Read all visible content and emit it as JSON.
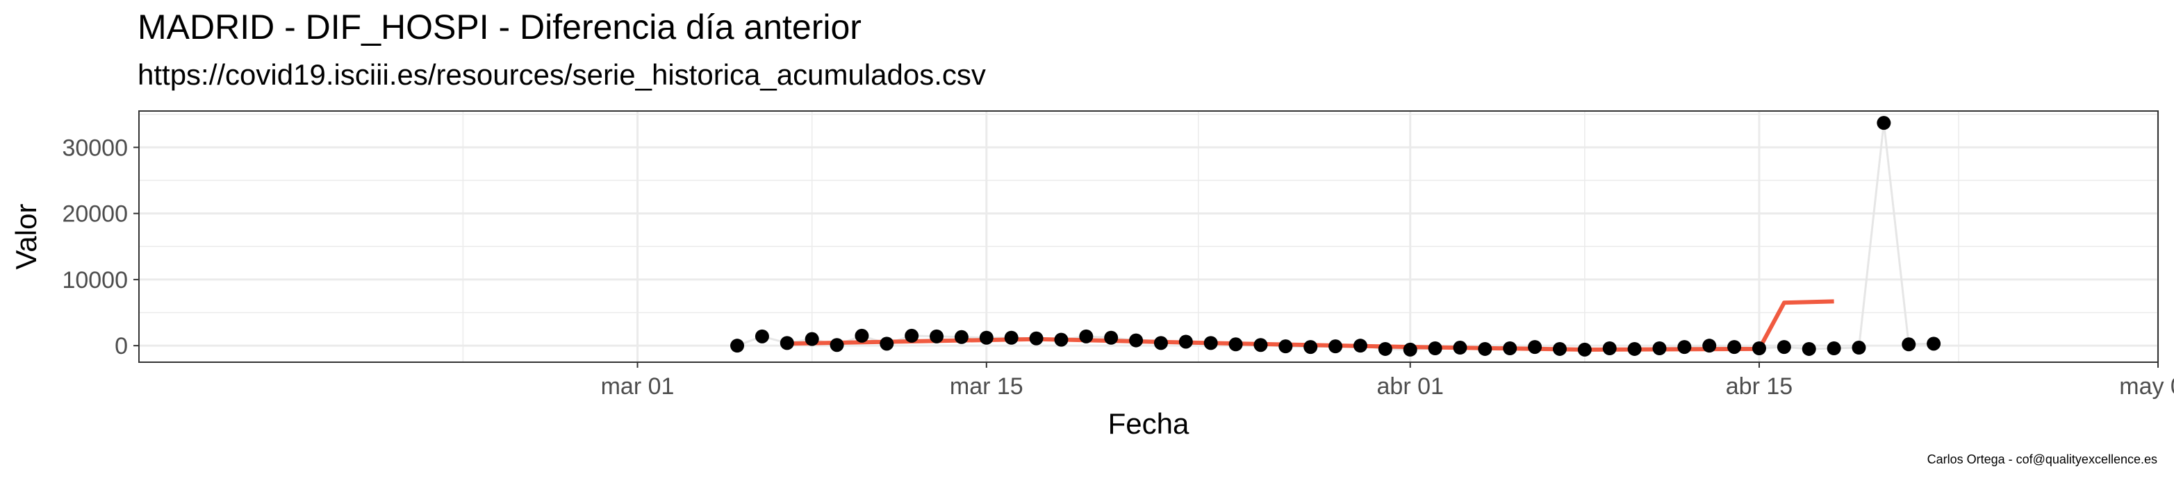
{
  "title": "MADRID - DIF_HOSPI - Diferencia día anterior",
  "subtitle": "https://covid19.isciii.es/resources/serie_historica_acumulados.csv",
  "caption": "Carlos Ortega - cof@qualityexcellence.es",
  "colors": {
    "points": "#000000",
    "smooth": "#f05a40",
    "connector": "#e6e6e6",
    "grid": "#ebebeb",
    "border": "#333333"
  },
  "chart_data": {
    "type": "scatter",
    "xlabel": "Fecha",
    "ylabel": "Valor",
    "x_ticks": [
      {
        "date": "2020-03-01",
        "label": "mar 01"
      },
      {
        "date": "2020-03-15",
        "label": "mar 15"
      },
      {
        "date": "2020-04-01",
        "label": "abr 01"
      },
      {
        "date": "2020-04-15",
        "label": "abr 15"
      },
      {
        "date": "2020-05-01",
        "label": "may 01"
      }
    ],
    "y_ticks": [
      0,
      10000,
      20000,
      30000
    ],
    "xlim": [
      "2020-02-10",
      "2020-05-01"
    ],
    "ylim": [
      -2500,
      35500
    ],
    "grid": true,
    "series": [
      {
        "points": [
          {
            "x": "2020-03-05",
            "y": 0
          },
          {
            "x": "2020-03-06",
            "y": 1400
          },
          {
            "x": "2020-03-07",
            "y": 400
          },
          {
            "x": "2020-03-08",
            "y": 1000
          },
          {
            "x": "2020-03-09",
            "y": 100
          },
          {
            "x": "2020-03-10",
            "y": 1500
          },
          {
            "x": "2020-03-11",
            "y": 300
          },
          {
            "x": "2020-03-12",
            "y": 1500
          },
          {
            "x": "2020-03-13",
            "y": 1400
          },
          {
            "x": "2020-03-14",
            "y": 1300
          },
          {
            "x": "2020-03-15",
            "y": 1200
          },
          {
            "x": "2020-03-16",
            "y": 1200
          },
          {
            "x": "2020-03-17",
            "y": 1100
          },
          {
            "x": "2020-03-18",
            "y": 900
          },
          {
            "x": "2020-03-19",
            "y": 1400
          },
          {
            "x": "2020-03-20",
            "y": 1200
          },
          {
            "x": "2020-03-21",
            "y": 800
          },
          {
            "x": "2020-03-22",
            "y": 400
          },
          {
            "x": "2020-03-23",
            "y": 600
          },
          {
            "x": "2020-03-24",
            "y": 400
          },
          {
            "x": "2020-03-25",
            "y": 200
          },
          {
            "x": "2020-03-26",
            "y": 100
          },
          {
            "x": "2020-03-27",
            "y": -100
          },
          {
            "x": "2020-03-28",
            "y": -200
          },
          {
            "x": "2020-03-29",
            "y": -100
          },
          {
            "x": "2020-03-30",
            "y": 0
          },
          {
            "x": "2020-03-31",
            "y": -500
          },
          {
            "x": "2020-04-01",
            "y": -600
          },
          {
            "x": "2020-04-02",
            "y": -400
          },
          {
            "x": "2020-04-03",
            "y": -300
          },
          {
            "x": "2020-04-04",
            "y": -500
          },
          {
            "x": "2020-04-05",
            "y": -400
          },
          {
            "x": "2020-04-06",
            "y": -200
          },
          {
            "x": "2020-04-07",
            "y": -500
          },
          {
            "x": "2020-04-08",
            "y": -600
          },
          {
            "x": "2020-04-09",
            "y": -400
          },
          {
            "x": "2020-04-10",
            "y": -500
          },
          {
            "x": "2020-04-11",
            "y": -400
          },
          {
            "x": "2020-04-12",
            "y": -200
          },
          {
            "x": "2020-04-13",
            "y": 0
          },
          {
            "x": "2020-04-14",
            "y": -200
          },
          {
            "x": "2020-04-15",
            "y": -400
          },
          {
            "x": "2020-04-16",
            "y": -200
          },
          {
            "x": "2020-04-17",
            "y": -500
          },
          {
            "x": "2020-04-18",
            "y": -400
          },
          {
            "x": "2020-04-19",
            "y": -300
          },
          {
            "x": "2020-04-20",
            "y": 33700
          },
          {
            "x": "2020-04-21",
            "y": 200
          },
          {
            "x": "2020-04-22",
            "y": 300
          }
        ]
      }
    ],
    "smooth_line": [
      {
        "x": "2020-03-07",
        "y": 300
      },
      {
        "x": "2020-03-17",
        "y": 1000
      },
      {
        "x": "2020-03-24",
        "y": 400
      },
      {
        "x": "2020-04-01",
        "y": -200
      },
      {
        "x": "2020-04-08",
        "y": -600
      },
      {
        "x": "2020-04-15",
        "y": -500
      },
      {
        "x": "2020-04-16",
        "y": 6500
      },
      {
        "x": "2020-04-18",
        "y": 6700
      }
    ]
  }
}
